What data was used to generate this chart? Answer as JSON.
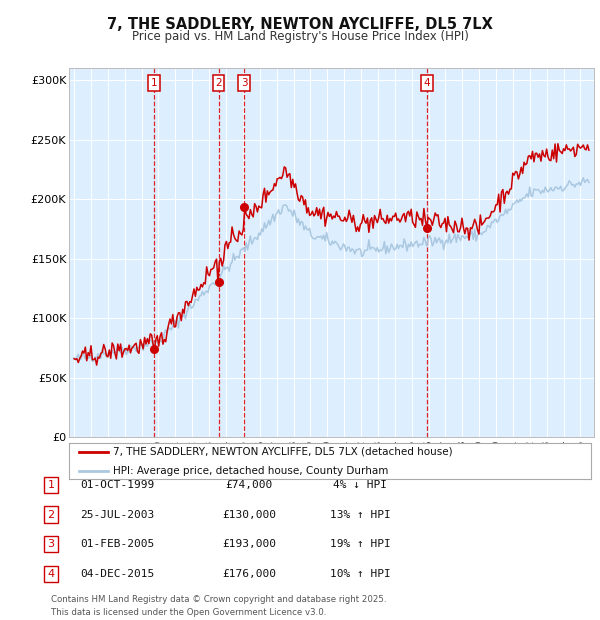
{
  "title": "7, THE SADDLERY, NEWTON AYCLIFFE, DL5 7LX",
  "subtitle": "Price paid vs. HM Land Registry's House Price Index (HPI)",
  "legend_line1": "7, THE SADDLERY, NEWTON AYCLIFFE, DL5 7LX (detached house)",
  "legend_line2": "HPI: Average price, detached house, County Durham",
  "footer": "Contains HM Land Registry data © Crown copyright and database right 2025.\nThis data is licensed under the Open Government Licence v3.0.",
  "sale_color": "#cc0000",
  "hpi_color": "#aac8e0",
  "background_color": "#ddeeff",
  "ylim": [
    0,
    310000
  ],
  "yticks": [
    0,
    50000,
    100000,
    150000,
    200000,
    250000,
    300000
  ],
  "ytick_labels": [
    "£0",
    "£50K",
    "£100K",
    "£150K",
    "£200K",
    "£250K",
    "£300K"
  ],
  "transactions": [
    {
      "num": 1,
      "date": "01-OCT-1999",
      "price": 74000,
      "hpi_diff": "4% ↓ HPI",
      "year": 1999.75
    },
    {
      "num": 2,
      "date": "25-JUL-2003",
      "price": 130000,
      "hpi_diff": "13% ↑ HPI",
      "year": 2003.56
    },
    {
      "num": 3,
      "date": "01-FEB-2005",
      "price": 193000,
      "hpi_diff": "19% ↑ HPI",
      "year": 2005.08
    },
    {
      "num": 4,
      "date": "04-DEC-2015",
      "price": 176000,
      "hpi_diff": "10% ↑ HPI",
      "year": 2015.92
    }
  ],
  "xmin": 1994.7,
  "xmax": 2025.8
}
